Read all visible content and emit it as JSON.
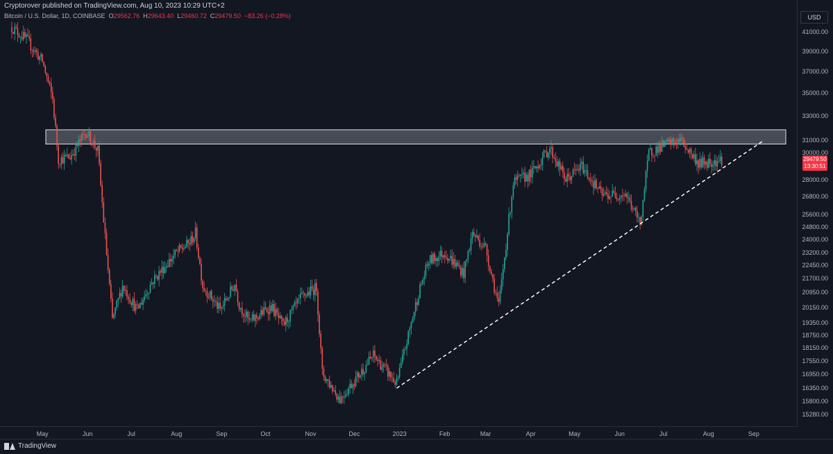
{
  "header": {
    "published": "Cryptorover published on TradingView.com, Aug 10, 2023 10:29 UTC+2"
  },
  "legend": {
    "symbol": "Bitcoin / U.S. Dollar, 1D, COINBASE",
    "open_key": "O",
    "open": "29562.76",
    "high_key": "H",
    "high": "29643.40",
    "low_key": "L",
    "low": "29460.72",
    "close_key": "C",
    "close": "29479.50",
    "change": "−83.26 (−0.28%)"
  },
  "price_axis": {
    "currency": "USD",
    "ticks": [
      "41000.00",
      "39000.00",
      "37000.00",
      "35000.00",
      "33000.00",
      "31000.00",
      "30000.00",
      "28000.00",
      "26800.00",
      "25600.00",
      "24800.00",
      "24000.00",
      "23200.00",
      "22450.00",
      "21700.00",
      "20950.00",
      "20150.00",
      "19350.00",
      "18750.00",
      "18150.00",
      "17550.00",
      "16950.00",
      "16350.00",
      "15800.00",
      "15280.00"
    ],
    "current_price": "29479.50",
    "countdown": "13:30:51"
  },
  "time_axis": {
    "labels": [
      "May",
      "Jun",
      "Jul",
      "Aug",
      "Sep",
      "Oct",
      "Nov",
      "Dec",
      "2023",
      "Feb",
      "Mar",
      "Apr",
      "May",
      "Jun",
      "Jul",
      "Aug",
      "Sep"
    ]
  },
  "footer": {
    "brand": "TradingView"
  },
  "colors": {
    "up": "#26a69a",
    "down": "#ef5350",
    "background": "#131722",
    "zone_fill": "#d1d4dc",
    "trendline": "#ffffff"
  },
  "drawings": {
    "resistance_zone": {
      "top_price": 31850,
      "bottom_price": 30700
    },
    "trendline": {
      "from": {
        "date": "2022-12-30",
        "price": 16350
      },
      "to": {
        "date": "2023-09-08",
        "price": 31000
      }
    }
  },
  "chart_data": {
    "type": "candlestick",
    "symbol": "BTCUSD",
    "timeframe": "1D",
    "x_range": [
      "2022-04-10",
      "2023-09-20"
    ],
    "path": [
      [
        "2022-04-10",
        41500
      ],
      [
        "2022-04-20",
        40200
      ],
      [
        "2022-05-01",
        38000
      ],
      [
        "2022-05-08",
        34500
      ],
      [
        "2022-05-12",
        29500
      ],
      [
        "2022-05-20",
        29700
      ],
      [
        "2022-05-31",
        31700
      ],
      [
        "2022-06-08",
        30200
      ],
      [
        "2022-06-12",
        25200
      ],
      [
        "2022-06-18",
        19500
      ],
      [
        "2022-06-25",
        21300
      ],
      [
        "2022-07-05",
        20000
      ],
      [
        "2022-07-15",
        21500
      ],
      [
        "2022-07-25",
        22500
      ],
      [
        "2022-08-01",
        23200
      ],
      [
        "2022-08-10",
        23800
      ],
      [
        "2022-08-14",
        24400
      ],
      [
        "2022-08-19",
        21300
      ],
      [
        "2022-08-31",
        20000
      ],
      [
        "2022-09-10",
        21400
      ],
      [
        "2022-09-13",
        20300
      ],
      [
        "2022-09-20",
        19400
      ],
      [
        "2022-10-05",
        20200
      ],
      [
        "2022-10-13",
        19200
      ],
      [
        "2022-10-26",
        20700
      ],
      [
        "2022-11-05",
        21200
      ],
      [
        "2022-11-09",
        17000
      ],
      [
        "2022-11-21",
        15900
      ],
      [
        "2022-12-05",
        17000
      ],
      [
        "2022-12-14",
        17800
      ],
      [
        "2022-12-30",
        16550
      ],
      [
        "2023-01-14",
        20900
      ],
      [
        "2023-01-21",
        22700
      ],
      [
        "2023-02-01",
        23200
      ],
      [
        "2023-02-14",
        22000
      ],
      [
        "2023-02-20",
        24400
      ],
      [
        "2023-03-01",
        23500
      ],
      [
        "2023-03-10",
        20200
      ],
      [
        "2023-03-20",
        27800
      ],
      [
        "2023-04-01",
        28400
      ],
      [
        "2023-04-14",
        30400
      ],
      [
        "2023-04-25",
        28000
      ],
      [
        "2023-05-06",
        29000
      ],
      [
        "2023-05-20",
        26900
      ],
      [
        "2023-06-05",
        27000
      ],
      [
        "2023-06-15",
        25000
      ],
      [
        "2023-06-21",
        30000
      ],
      [
        "2023-07-01",
        30600
      ],
      [
        "2023-07-13",
        31000
      ],
      [
        "2023-07-25",
        29200
      ],
      [
        "2023-08-10",
        29479.5
      ]
    ]
  }
}
